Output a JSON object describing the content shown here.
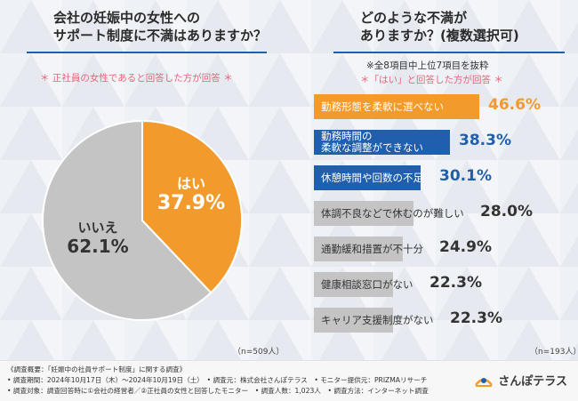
{
  "left_panel": {
    "title_line1": "会社の妊娠中の女性への",
    "title_line2": "サポート制度に不満はありますか？",
    "note": "＊ 正社員の女性であると回答した方が回答 ＊",
    "sample": "（n=509人）"
  },
  "right_panel": {
    "title_line1": "どのような不満が",
    "title_line2": "ありますか？(複数選択可)",
    "note1": "※全8項目中上位7項目を抜粋",
    "note2": "＊「はい」と回答した方が回答 ＊",
    "sample": "（n=193人）"
  },
  "colors": {
    "orange": "#f39a2c",
    "blue": "#1f5fae",
    "gray": "#c4c4c4",
    "text_dark": "#333333"
  },
  "chart_data": [
    {
      "type": "pie",
      "title": "会社の妊娠中の女性へのサポート制度に不満はありますか？",
      "slices": [
        {
          "label": "はい",
          "value": 37.9,
          "display": "37.9%"
        },
        {
          "label": "いいえ",
          "value": 62.1,
          "display": "62.1%"
        }
      ],
      "n": "n=509人"
    },
    {
      "type": "bar",
      "orientation": "horizontal",
      "title": "どのような不満がありますか？(複数選択可)",
      "categories": [
        "勤務形態を柔軟に選べない",
        "勤務時間の\n柔軟な調整ができない",
        "休憩時間や回数の不足",
        "体調不良などで休むのが難しい",
        "通勤緩和措置が不十分",
        "健康相談窓口がない",
        "キャリア支援制度がない"
      ],
      "values": [
        46.6,
        38.3,
        30.1,
        28.0,
        24.9,
        22.3,
        22.3
      ],
      "value_labels": [
        "46.6%",
        "38.3%",
        "30.1%",
        "28.0%",
        "24.9%",
        "22.3%",
        "22.3%"
      ],
      "xlim": [
        0,
        100
      ],
      "n": "n=193人"
    }
  ],
  "footer": {
    "line1": "《調査概要：「妊娠中の社員サポート制度」に関する調査》",
    "line2": "• 調査期間：2024年10月17日（木）〜2024年10月19日（土）　• 調査元：株式会社さんぽテラス　• モニター提供元：PRIZMAリサーチ",
    "line3": "• 調査対象：調査回答時に①会社の経営者／②正社員の女性と回答したモニター　• 調査人数：1,023人　• 調査方法：インターネット調査",
    "logo_text": "さんぽテラス"
  }
}
